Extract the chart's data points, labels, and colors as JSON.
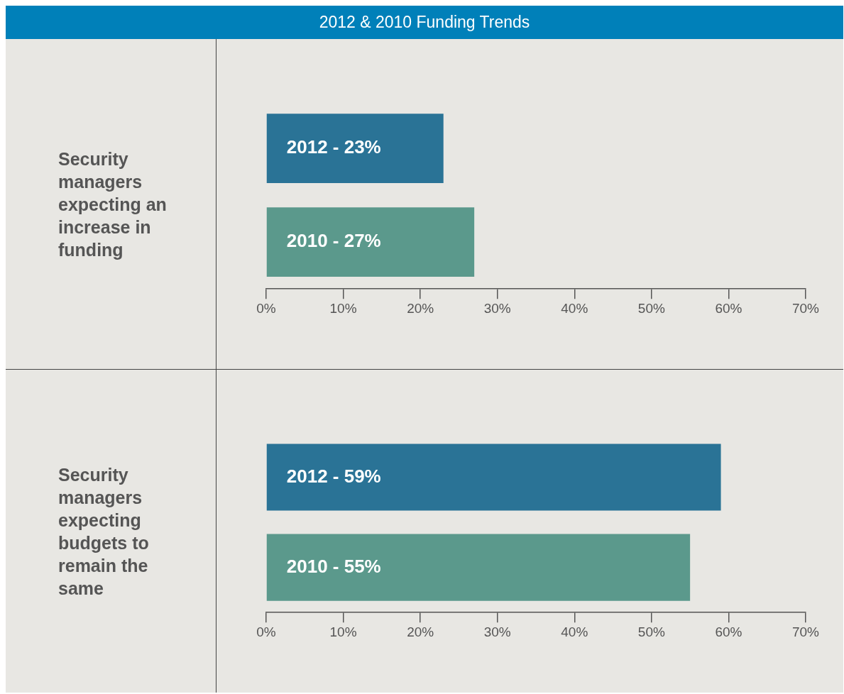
{
  "chart_data": [
    {
      "type": "bar",
      "title": "2012 & 2010 Funding Trends",
      "ylabel": "Security managers expecting an increase in funding",
      "orientation": "horizontal",
      "categories": [
        "2012 -",
        "2010 -"
      ],
      "values": [
        23,
        27
      ],
      "colors": [
        "#2a7396",
        "#5b998c"
      ],
      "value_labels": [
        "23%",
        "27%"
      ],
      "xlim": [
        0,
        70
      ],
      "xticks": [
        {
          "value": 0,
          "label": "0%"
        },
        {
          "value": 10,
          "label": "10%"
        },
        {
          "value": 20,
          "label": "20%"
        },
        {
          "value": 30,
          "label": "30%"
        },
        {
          "value": 40,
          "label": "40%"
        },
        {
          "value": 50,
          "label": "50%"
        },
        {
          "value": 60,
          "label": "60%"
        },
        {
          "value": 70,
          "label": "70%"
        }
      ],
      "grid": false
    },
    {
      "type": "bar",
      "ylabel": "Security managers expecting budgets to remain the same",
      "orientation": "horizontal",
      "categories": [
        "2012 -",
        "2010 -"
      ],
      "values": [
        59,
        55
      ],
      "colors": [
        "#2a7396",
        "#5b998c"
      ],
      "value_labels": [
        "59%",
        "55%"
      ],
      "xlim": [
        0,
        70
      ],
      "xticks": [
        {
          "value": 0,
          "label": "0%"
        },
        {
          "value": 10,
          "label": "10%"
        },
        {
          "value": 20,
          "label": "20%"
        },
        {
          "value": 30,
          "label": "30%"
        },
        {
          "value": 40,
          "label": "40%"
        },
        {
          "value": 50,
          "label": "50%"
        },
        {
          "value": 60,
          "label": "60%"
        },
        {
          "value": 70,
          "label": "70%"
        }
      ],
      "grid": false
    }
  ]
}
